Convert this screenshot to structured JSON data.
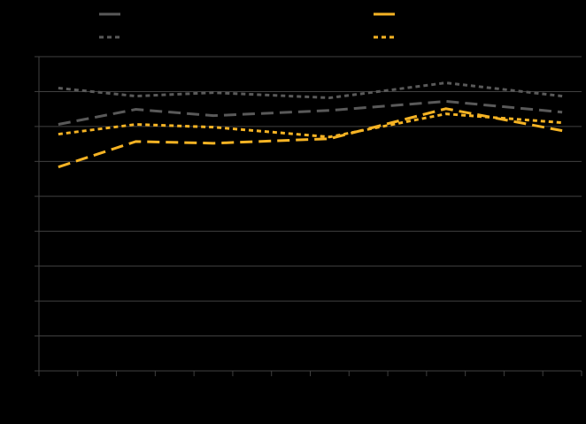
{
  "chart_data": {
    "type": "line",
    "x": [
      0.5,
      2.5,
      4.5,
      7.5,
      10.5,
      13.5
    ],
    "xlim": [
      0,
      14
    ],
    "xticks": [
      0,
      1,
      2,
      3,
      4,
      5,
      6,
      7,
      8,
      9,
      10,
      11,
      12,
      13,
      14
    ],
    "ylim": [
      0,
      9
    ],
    "yticks": [
      0,
      1,
      2,
      3,
      4,
      5,
      6,
      7,
      8,
      9
    ],
    "grid": true,
    "series": [
      {
        "color": "#595959",
        "dash": "dashed",
        "values": [
          7.06,
          7.49,
          7.31,
          7.46,
          7.72,
          7.41
        ]
      },
      {
        "color": "#f5b324",
        "dash": "dashed",
        "values": [
          5.84,
          6.57,
          6.52,
          6.65,
          7.51,
          6.88
        ]
      },
      {
        "color": "#595959",
        "dash": "dotted",
        "values": [
          8.1,
          7.87,
          7.97,
          7.82,
          8.25,
          7.87
        ]
      },
      {
        "color": "#f5b324",
        "dash": "dotted",
        "values": [
          6.78,
          7.06,
          6.98,
          6.7,
          7.36,
          7.11
        ]
      }
    ]
  }
}
